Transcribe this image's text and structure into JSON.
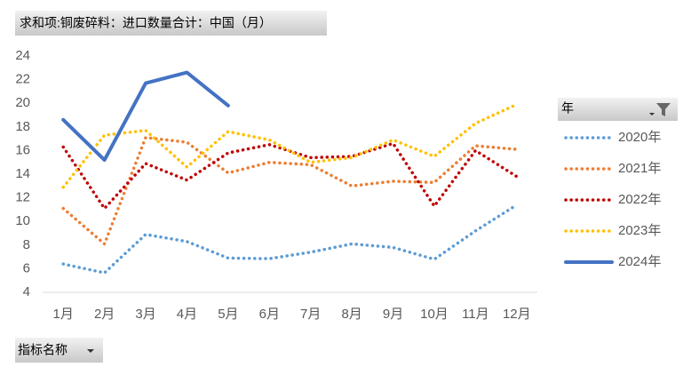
{
  "chart_data": {
    "type": "line",
    "title": "求和项:铜废碎料：进口数量合计：中国（月）",
    "legend_title": "年",
    "axis_field": "指标名称",
    "categories": [
      "1月",
      "2月",
      "3月",
      "4月",
      "5月",
      "6月",
      "7月",
      "8月",
      "9月",
      "10月",
      "11月",
      "12月"
    ],
    "ylim": [
      4,
      24
    ],
    "yticks": [
      4,
      6,
      8,
      10,
      12,
      14,
      16,
      18,
      20,
      22,
      24
    ],
    "grid": false,
    "legend": "right",
    "series": [
      {
        "name": "2020年",
        "color": "#5b9bd5",
        "style": "dotted",
        "values": [
          6.4,
          5.65,
          8.9,
          8.3,
          6.9,
          6.85,
          7.4,
          8.1,
          7.8,
          6.8,
          9.2,
          11.4
        ]
      },
      {
        "name": "2021年",
        "color": "#ed7d31",
        "style": "dotted",
        "values": [
          11.1,
          8.1,
          17.1,
          16.7,
          14.1,
          15.0,
          14.8,
          13.0,
          13.4,
          13.3,
          16.4,
          16.1
        ]
      },
      {
        "name": "2022年",
        "color": "#c00000",
        "style": "dotted",
        "values": [
          16.3,
          11.1,
          14.9,
          13.5,
          15.8,
          16.5,
          15.4,
          15.5,
          16.6,
          11.3,
          16.0,
          13.8
        ]
      },
      {
        "name": "2023年",
        "color": "#ffc000",
        "style": "dotted",
        "values": [
          12.9,
          17.3,
          17.7,
          14.6,
          17.6,
          16.9,
          15.0,
          15.4,
          16.9,
          15.5,
          18.3,
          19.9
        ]
      },
      {
        "name": "2024年",
        "color": "#4472c4",
        "style": "solid",
        "values": [
          18.6,
          15.2,
          21.7,
          22.6,
          19.8,
          null,
          null,
          null,
          null,
          null,
          null,
          null
        ]
      }
    ]
  }
}
